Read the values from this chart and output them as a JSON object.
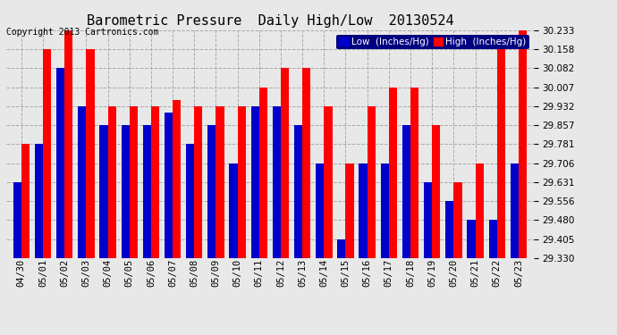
{
  "title": "Barometric Pressure  Daily High/Low  20130524",
  "copyright": "Copyright 2013 Cartronics.com",
  "legend_low": "Low  (Inches/Hg)",
  "legend_high": "High  (Inches/Hg)",
  "dates": [
    "04/30",
    "05/01",
    "05/02",
    "05/03",
    "05/04",
    "05/05",
    "05/06",
    "05/07",
    "05/08",
    "05/09",
    "05/10",
    "05/11",
    "05/12",
    "05/13",
    "05/14",
    "05/15",
    "05/16",
    "05/17",
    "05/18",
    "05/19",
    "05/20",
    "05/21",
    "05/22",
    "05/23"
  ],
  "low": [
    29.631,
    29.781,
    30.082,
    29.932,
    29.857,
    29.857,
    29.857,
    29.907,
    29.781,
    29.857,
    29.706,
    29.932,
    29.932,
    29.857,
    29.706,
    29.405,
    29.706,
    29.706,
    29.857,
    29.631,
    29.556,
    29.48,
    29.48,
    29.706
  ],
  "high": [
    29.781,
    30.158,
    30.233,
    30.158,
    29.932,
    29.932,
    29.932,
    29.957,
    29.932,
    29.932,
    29.932,
    30.007,
    30.082,
    30.082,
    29.932,
    29.706,
    29.932,
    30.007,
    30.007,
    29.857,
    29.631,
    29.706,
    30.158,
    30.233
  ],
  "ymin": 29.33,
  "ymax": 30.233,
  "yticks": [
    29.33,
    29.405,
    29.48,
    29.556,
    29.631,
    29.706,
    29.781,
    29.857,
    29.932,
    30.007,
    30.082,
    30.158,
    30.233
  ],
  "bg_color": "#e8e8e8",
  "bar_color_low": "#0000cc",
  "bar_color_high": "#ff0000",
  "grid_color": "#aaaaaa",
  "title_fontsize": 11,
  "copyright_fontsize": 7,
  "tick_fontsize": 7.5,
  "legend_fontsize": 7.5,
  "bar_width": 0.38
}
